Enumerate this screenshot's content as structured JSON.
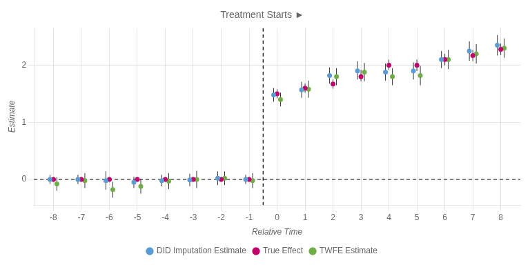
{
  "chart_data": {
    "type": "scatter",
    "title": "Treatment Starts ►",
    "xlabel": "Relative Time",
    "ylabel": "Estimate",
    "x": [
      -8,
      -7,
      -6,
      -5,
      -4,
      -3,
      -2,
      -1,
      0,
      1,
      2,
      3,
      4,
      5,
      6,
      7,
      8
    ],
    "series": [
      {
        "name": "DID Imputation Estimate",
        "color": "#5b9bd5",
        "marker": "circle",
        "values": [
          0.0,
          0.0,
          -0.02,
          -0.05,
          -0.02,
          -0.01,
          0.02,
          0.0,
          1.48,
          1.57,
          1.82,
          1.9,
          1.88,
          1.9,
          2.1,
          2.25,
          2.35
        ],
        "ci_lower": [
          -0.08,
          -0.08,
          -0.18,
          -0.15,
          -0.12,
          -0.12,
          -0.1,
          -0.08,
          1.36,
          1.43,
          1.68,
          1.75,
          1.73,
          1.75,
          1.95,
          2.08,
          2.17
        ],
        "ci_upper": [
          0.08,
          0.08,
          0.14,
          0.05,
          0.08,
          0.1,
          0.14,
          0.08,
          1.6,
          1.71,
          1.96,
          2.07,
          2.03,
          2.05,
          2.25,
          2.42,
          2.53
        ]
      },
      {
        "name": "True Effect",
        "color": "#c0006a",
        "marker": "circle",
        "values": [
          0.0,
          0.0,
          0.0,
          0.0,
          0.0,
          0.0,
          0.0,
          0.0,
          1.5,
          1.6,
          1.67,
          1.8,
          2.0,
          2.0,
          2.1,
          2.17,
          2.28
        ],
        "ci_lower": [
          -0.04,
          -0.04,
          -0.04,
          -0.04,
          -0.04,
          -0.04,
          -0.04,
          -0.04,
          1.42,
          1.52,
          1.59,
          1.72,
          1.92,
          1.9,
          2.0,
          2.07,
          2.18
        ],
        "ci_upper": [
          0.04,
          0.04,
          0.04,
          0.04,
          0.04,
          0.04,
          0.04,
          0.04,
          1.58,
          1.68,
          1.75,
          1.92,
          2.1,
          2.1,
          2.2,
          2.27,
          2.38
        ]
      },
      {
        "name": "TWFE Estimate",
        "color": "#70ad47",
        "marker": "circle",
        "values": [
          -0.08,
          -0.02,
          -0.18,
          -0.12,
          -0.03,
          0.0,
          0.02,
          -0.02,
          1.4,
          1.58,
          1.8,
          1.88,
          1.8,
          1.82,
          2.1,
          2.2,
          2.3
        ],
        "ci_lower": [
          -0.2,
          -0.15,
          -0.32,
          -0.25,
          -0.17,
          -0.15,
          -0.1,
          -0.15,
          1.28,
          1.43,
          1.65,
          1.72,
          1.65,
          1.65,
          1.93,
          2.03,
          2.13
        ],
        "ci_upper": [
          0.04,
          0.11,
          -0.04,
          0.01,
          0.11,
          0.15,
          0.14,
          0.11,
          1.52,
          1.73,
          1.95,
          2.04,
          1.95,
          1.99,
          2.27,
          2.37,
          2.47
        ]
      }
    ],
    "annotations": [
      {
        "x": -0.5,
        "line_style": "dashed"
      },
      {
        "y": 0,
        "line_style": "dashed"
      }
    ],
    "xlim": [
      -8.7,
      8.7
    ],
    "xticks": [
      -8,
      -7,
      -6,
      -5,
      -4,
      -3,
      -2,
      -1,
      0,
      1,
      2,
      3,
      4,
      5,
      6,
      7,
      8
    ],
    "ylim": [
      -0.45,
      2.65
    ],
    "yticks": [
      0,
      1,
      2
    ],
    "grid": true,
    "legend": "bottom"
  }
}
